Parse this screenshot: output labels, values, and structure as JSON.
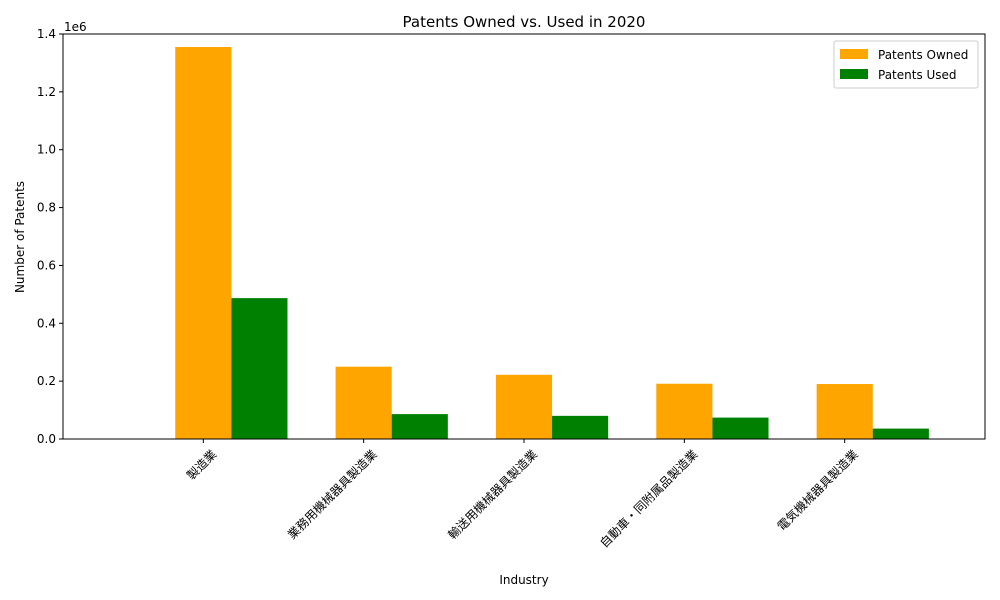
{
  "chart_data": {
    "type": "bar",
    "title": "Patents Owned vs. Used in 2020",
    "xlabel": "Industry",
    "ylabel": "Number of Patents",
    "y_multiplier_label": "1e6",
    "categories": [
      "製造業",
      "業務用機械器具製造業",
      "輸送用機械器具製造業",
      "自動車・同附属品製造業",
      "電気機械器具製造業"
    ],
    "series": [
      {
        "name": "Patents Owned",
        "color": "#ffa500",
        "values": [
          1355000,
          250000,
          222000,
          191000,
          190000
        ]
      },
      {
        "name": "Patents Used",
        "color": "#008000",
        "values": [
          487000,
          86000,
          80000,
          74000,
          36000
        ]
      }
    ],
    "ylim": [
      0,
      1400000
    ],
    "yticks": [
      0,
      200000,
      400000,
      600000,
      800000,
      1000000,
      1200000,
      1400000
    ],
    "ytick_labels": [
      "0.0",
      "0.2",
      "0.4",
      "0.6",
      "0.8",
      "1.0",
      "1.2",
      "1.4"
    ],
    "grid": false,
    "legend_position": "top-right"
  }
}
